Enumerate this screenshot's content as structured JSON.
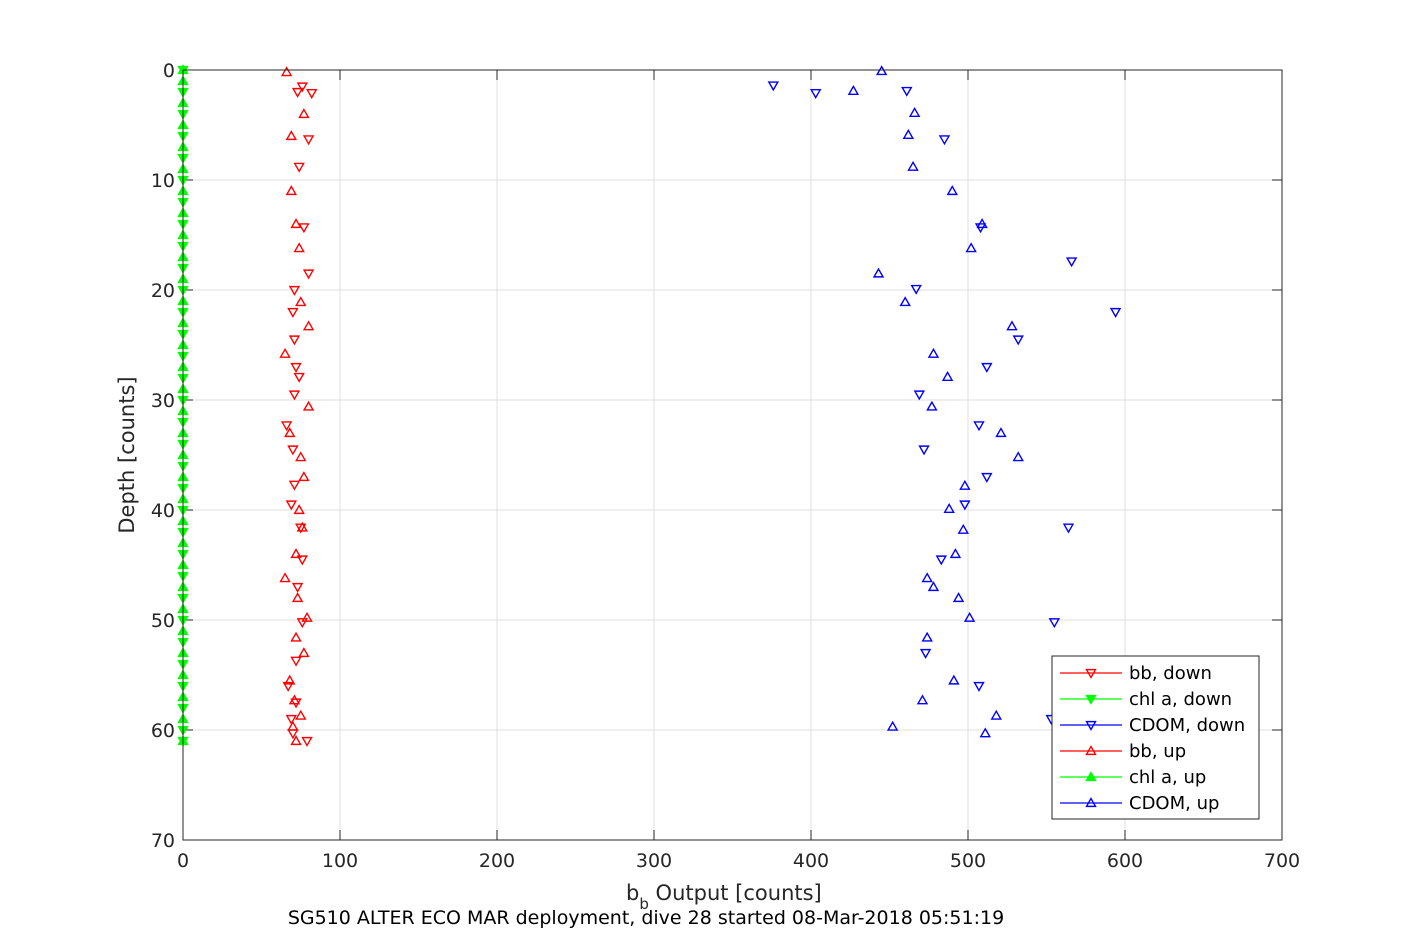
{
  "chart_data": {
    "type": "scatter",
    "xlabel_main": "b",
    "xlabel_sub": "b",
    "xlabel_rest": " Output [counts]",
    "ylabel": "Depth [counts]",
    "caption": "SG510 ALTER ECO MAR deployment, dive 28 started 08-Mar-2018 05:51:19",
    "xlim": [
      0,
      700
    ],
    "ylim": [
      0,
      70
    ],
    "y_reversed": true,
    "grid": true,
    "x_ticks": [
      0,
      100,
      200,
      300,
      400,
      500,
      600,
      700
    ],
    "y_ticks": [
      0,
      10,
      20,
      30,
      40,
      50,
      60,
      70
    ],
    "legend_position": "bottom-right",
    "series": [
      {
        "name": "bb, down",
        "color": "#ff0000",
        "marker": "triangle-down",
        "points": [
          [
            76,
            1.5
          ],
          [
            73,
            2
          ],
          [
            82,
            2.1
          ],
          [
            80,
            6.3
          ],
          [
            74,
            8.8
          ],
          [
            77,
            14.3
          ],
          [
            80,
            18.5
          ],
          [
            71,
            20.0
          ],
          [
            70,
            22.0
          ],
          [
            71,
            24.5
          ],
          [
            72,
            27.0
          ],
          [
            71,
            29.5
          ],
          [
            66,
            32.3
          ],
          [
            70,
            34.5
          ],
          [
            71,
            37.7
          ],
          [
            69,
            39.5
          ],
          [
            75,
            41.6
          ],
          [
            73,
            47
          ],
          [
            76,
            50.2
          ],
          [
            72,
            53.7
          ],
          [
            67,
            56.0
          ],
          [
            72,
            57.5
          ],
          [
            69,
            59
          ],
          [
            70,
            60.3
          ],
          [
            79,
            61.0
          ],
          [
            76,
            44.5
          ],
          [
            74,
            27.9
          ]
        ]
      },
      {
        "name": "chl a, down",
        "color": "#00ff00",
        "marker": "triangle-down",
        "points": [
          [
            0,
            0
          ],
          [
            0,
            2
          ],
          [
            0,
            4
          ],
          [
            0,
            6
          ],
          [
            0,
            8
          ],
          [
            0,
            10
          ],
          [
            0,
            12
          ],
          [
            0,
            14
          ],
          [
            0,
            16
          ],
          [
            0,
            18
          ],
          [
            0,
            20
          ],
          [
            0,
            22
          ],
          [
            0,
            24
          ],
          [
            0,
            26
          ],
          [
            0,
            28
          ],
          [
            0,
            30
          ],
          [
            0,
            32
          ],
          [
            0,
            34
          ],
          [
            0,
            36
          ],
          [
            0,
            38
          ],
          [
            0,
            40
          ],
          [
            0,
            42
          ],
          [
            0,
            44
          ],
          [
            0,
            46
          ],
          [
            0,
            48
          ],
          [
            0,
            50
          ],
          [
            0,
            52
          ],
          [
            0,
            54
          ],
          [
            0,
            56
          ],
          [
            0,
            58
          ],
          [
            0,
            60
          ],
          [
            0,
            61
          ]
        ]
      },
      {
        "name": "CDOM, down",
        "color": "#0000ff",
        "marker": "triangle-down",
        "points": [
          [
            376,
            1.4
          ],
          [
            403,
            2.1
          ],
          [
            461,
            1.9
          ],
          [
            485,
            6.3
          ],
          [
            566,
            17.4
          ],
          [
            467,
            19.9
          ],
          [
            594,
            22.0
          ],
          [
            532,
            24.5
          ],
          [
            512,
            27.0
          ],
          [
            469,
            29.5
          ],
          [
            507,
            32.3
          ],
          [
            472,
            34.5
          ],
          [
            512,
            37.0
          ],
          [
            498,
            39.5
          ],
          [
            564,
            41.6
          ],
          [
            483,
            44.5
          ],
          [
            555,
            50.2
          ],
          [
            473,
            53.0
          ],
          [
            507,
            56.0
          ],
          [
            553,
            59.0
          ],
          [
            508,
            14.3
          ]
        ]
      },
      {
        "name": "bb, up",
        "color": "#ff0000",
        "marker": "triangle-up",
        "points": [
          [
            66,
            0.2
          ],
          [
            77,
            4.0
          ],
          [
            69,
            6.0
          ],
          [
            69,
            11.0
          ],
          [
            72,
            14.0
          ],
          [
            74,
            16.2
          ],
          [
            75,
            21.1
          ],
          [
            80,
            23.3
          ],
          [
            65,
            25.8
          ],
          [
            80,
            30.6
          ],
          [
            68,
            33.0
          ],
          [
            75,
            35.2
          ],
          [
            77,
            37.0
          ],
          [
            74,
            40
          ],
          [
            76,
            41.6
          ],
          [
            72,
            44.0
          ],
          [
            65,
            46.2
          ],
          [
            73,
            48.0
          ],
          [
            79,
            49.8
          ],
          [
            72,
            51.6
          ],
          [
            77,
            53.0
          ],
          [
            68,
            55.5
          ],
          [
            71,
            57.3
          ],
          [
            75,
            58.7
          ],
          [
            70,
            59.7
          ],
          [
            72,
            61.0
          ]
        ]
      },
      {
        "name": "chl a, up",
        "color": "#00ff00",
        "marker": "triangle-up",
        "points": [
          [
            0,
            0
          ],
          [
            0,
            1
          ],
          [
            0,
            3
          ],
          [
            0,
            5
          ],
          [
            0,
            7
          ],
          [
            0,
            9
          ],
          [
            0,
            11
          ],
          [
            0,
            13
          ],
          [
            0,
            15
          ],
          [
            0,
            17
          ],
          [
            0,
            19
          ],
          [
            0,
            21
          ],
          [
            0,
            23
          ],
          [
            0,
            25
          ],
          [
            0,
            27
          ],
          [
            0,
            29
          ],
          [
            0,
            31
          ],
          [
            0,
            33
          ],
          [
            0,
            35
          ],
          [
            0,
            37
          ],
          [
            0,
            39
          ],
          [
            0,
            41
          ],
          [
            0,
            43
          ],
          [
            0,
            45
          ],
          [
            0,
            47
          ],
          [
            0,
            49
          ],
          [
            0,
            51
          ],
          [
            0,
            53
          ],
          [
            0,
            55
          ],
          [
            0,
            57
          ],
          [
            0,
            59
          ],
          [
            0,
            61
          ]
        ]
      },
      {
        "name": "CDOM, up",
        "color": "#0000ff",
        "marker": "triangle-up",
        "points": [
          [
            445,
            0.1
          ],
          [
            427,
            1.9
          ],
          [
            466,
            3.9
          ],
          [
            462,
            5.9
          ],
          [
            465,
            8.8
          ],
          [
            490,
            11.0
          ],
          [
            509,
            14.0
          ],
          [
            502,
            16.2
          ],
          [
            443,
            18.5
          ],
          [
            460,
            21.1
          ],
          [
            528,
            23.3
          ],
          [
            478,
            25.8
          ],
          [
            487,
            27.9
          ],
          [
            477,
            30.6
          ],
          [
            521,
            33.0
          ],
          [
            532,
            35.2
          ],
          [
            498,
            37.8
          ],
          [
            488,
            39.9
          ],
          [
            497,
            41.8
          ],
          [
            492,
            44.0
          ],
          [
            474,
            46.2
          ],
          [
            478,
            47.0
          ],
          [
            494,
            48.0
          ],
          [
            501,
            49.8
          ],
          [
            474,
            51.6
          ],
          [
            491,
            55.5
          ],
          [
            471,
            57.3
          ],
          [
            518,
            58.7
          ],
          [
            452,
            59.7
          ],
          [
            511,
            60.3
          ]
        ]
      }
    ]
  }
}
